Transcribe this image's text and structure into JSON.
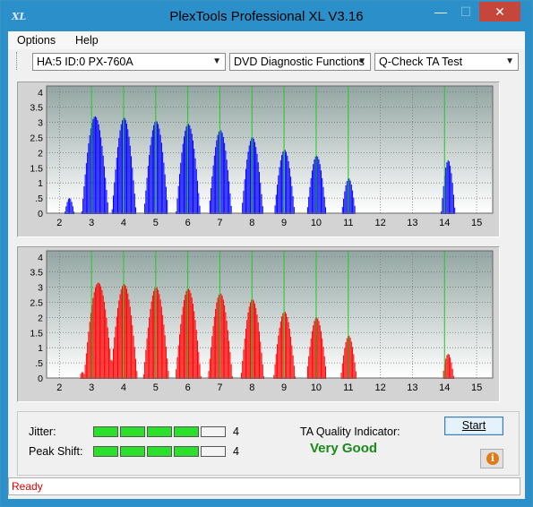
{
  "window": {
    "title": "PlexTools Professional XL V3.16",
    "app_icon_text": "XL",
    "min_icon": "minimize-icon",
    "max_icon": "maximize-icon",
    "close_icon": "close-icon"
  },
  "menu": {
    "options_label": "Options",
    "help_label": "Help"
  },
  "toolbar": {
    "drive_select": "HA:5 ID:0  PX-760A",
    "function_select": "DVD Diagnostic Functions",
    "test_select": "Q-Check TA Test"
  },
  "chart_data": [
    {
      "type": "bar",
      "name": "top-chart",
      "color": "#0000ff",
      "x_ticks": [
        "2",
        "3",
        "4",
        "5",
        "6",
        "7",
        "8",
        "9",
        "10",
        "11",
        "12",
        "13",
        "14",
        "15"
      ],
      "y_ticks": [
        "0",
        "0.5",
        "1",
        "1.5",
        "2",
        "2.5",
        "3",
        "3.5",
        "4"
      ],
      "xlim": [
        1.6,
        15.5
      ],
      "ylim": [
        0,
        4.2
      ],
      "marker_lines": [
        3,
        4,
        5,
        6,
        7,
        8,
        9,
        10,
        11,
        14
      ],
      "peaks": [
        {
          "x": 2.3,
          "h": 0.5,
          "w": 0.15
        },
        {
          "x": 3.1,
          "h": 3.2,
          "w": 0.42
        },
        {
          "x": 4.0,
          "h": 3.15,
          "w": 0.38
        },
        {
          "x": 5.0,
          "h": 3.05,
          "w": 0.38
        },
        {
          "x": 6.0,
          "h": 2.95,
          "w": 0.38
        },
        {
          "x": 7.0,
          "h": 2.75,
          "w": 0.36
        },
        {
          "x": 8.0,
          "h": 2.5,
          "w": 0.34
        },
        {
          "x": 9.0,
          "h": 2.1,
          "w": 0.32
        },
        {
          "x": 10.0,
          "h": 1.9,
          "w": 0.3
        },
        {
          "x": 11.0,
          "h": 1.15,
          "w": 0.22
        },
        {
          "x": 14.1,
          "h": 1.75,
          "w": 0.22
        }
      ]
    },
    {
      "type": "bar",
      "name": "bottom-chart",
      "color": "#ff0000",
      "x_ticks": [
        "2",
        "3",
        "4",
        "5",
        "6",
        "7",
        "8",
        "9",
        "10",
        "11",
        "12",
        "13",
        "14",
        "15"
      ],
      "y_ticks": [
        "0",
        "0.5",
        "1",
        "1.5",
        "2",
        "2.5",
        "3",
        "3.5",
        "4"
      ],
      "xlim": [
        1.6,
        15.5
      ],
      "ylim": [
        0,
        4.2
      ],
      "marker_lines": [
        3,
        4,
        5,
        6,
        7,
        8,
        9,
        10,
        11,
        14
      ],
      "peaks": [
        {
          "x": 2.7,
          "h": 0.2,
          "w": 0.1
        },
        {
          "x": 3.2,
          "h": 3.15,
          "w": 0.45
        },
        {
          "x": 4.0,
          "h": 3.1,
          "w": 0.42
        },
        {
          "x": 5.0,
          "h": 3.0,
          "w": 0.4
        },
        {
          "x": 6.0,
          "h": 2.95,
          "w": 0.4
        },
        {
          "x": 7.0,
          "h": 2.8,
          "w": 0.38
        },
        {
          "x": 8.0,
          "h": 2.6,
          "w": 0.36
        },
        {
          "x": 9.0,
          "h": 2.2,
          "w": 0.34
        },
        {
          "x": 10.0,
          "h": 2.0,
          "w": 0.32
        },
        {
          "x": 11.0,
          "h": 1.4,
          "w": 0.25
        },
        {
          "x": 14.1,
          "h": 0.8,
          "w": 0.18
        }
      ]
    }
  ],
  "metrics": {
    "jitter_label": "Jitter:",
    "jitter_value": "4",
    "jitter_level": 4,
    "peak_shift_label": "Peak Shift:",
    "peak_shift_value": "4",
    "peak_shift_level": 4,
    "segments_total": 5,
    "ta_label": "TA Quality Indicator:",
    "ta_result": "Very Good",
    "ta_color": "#1a8a1a"
  },
  "buttons": {
    "start_label": "Start",
    "info_icon": "info-icon",
    "info_glyph": "i"
  },
  "status": {
    "text": "Ready",
    "color": "#e00000"
  }
}
